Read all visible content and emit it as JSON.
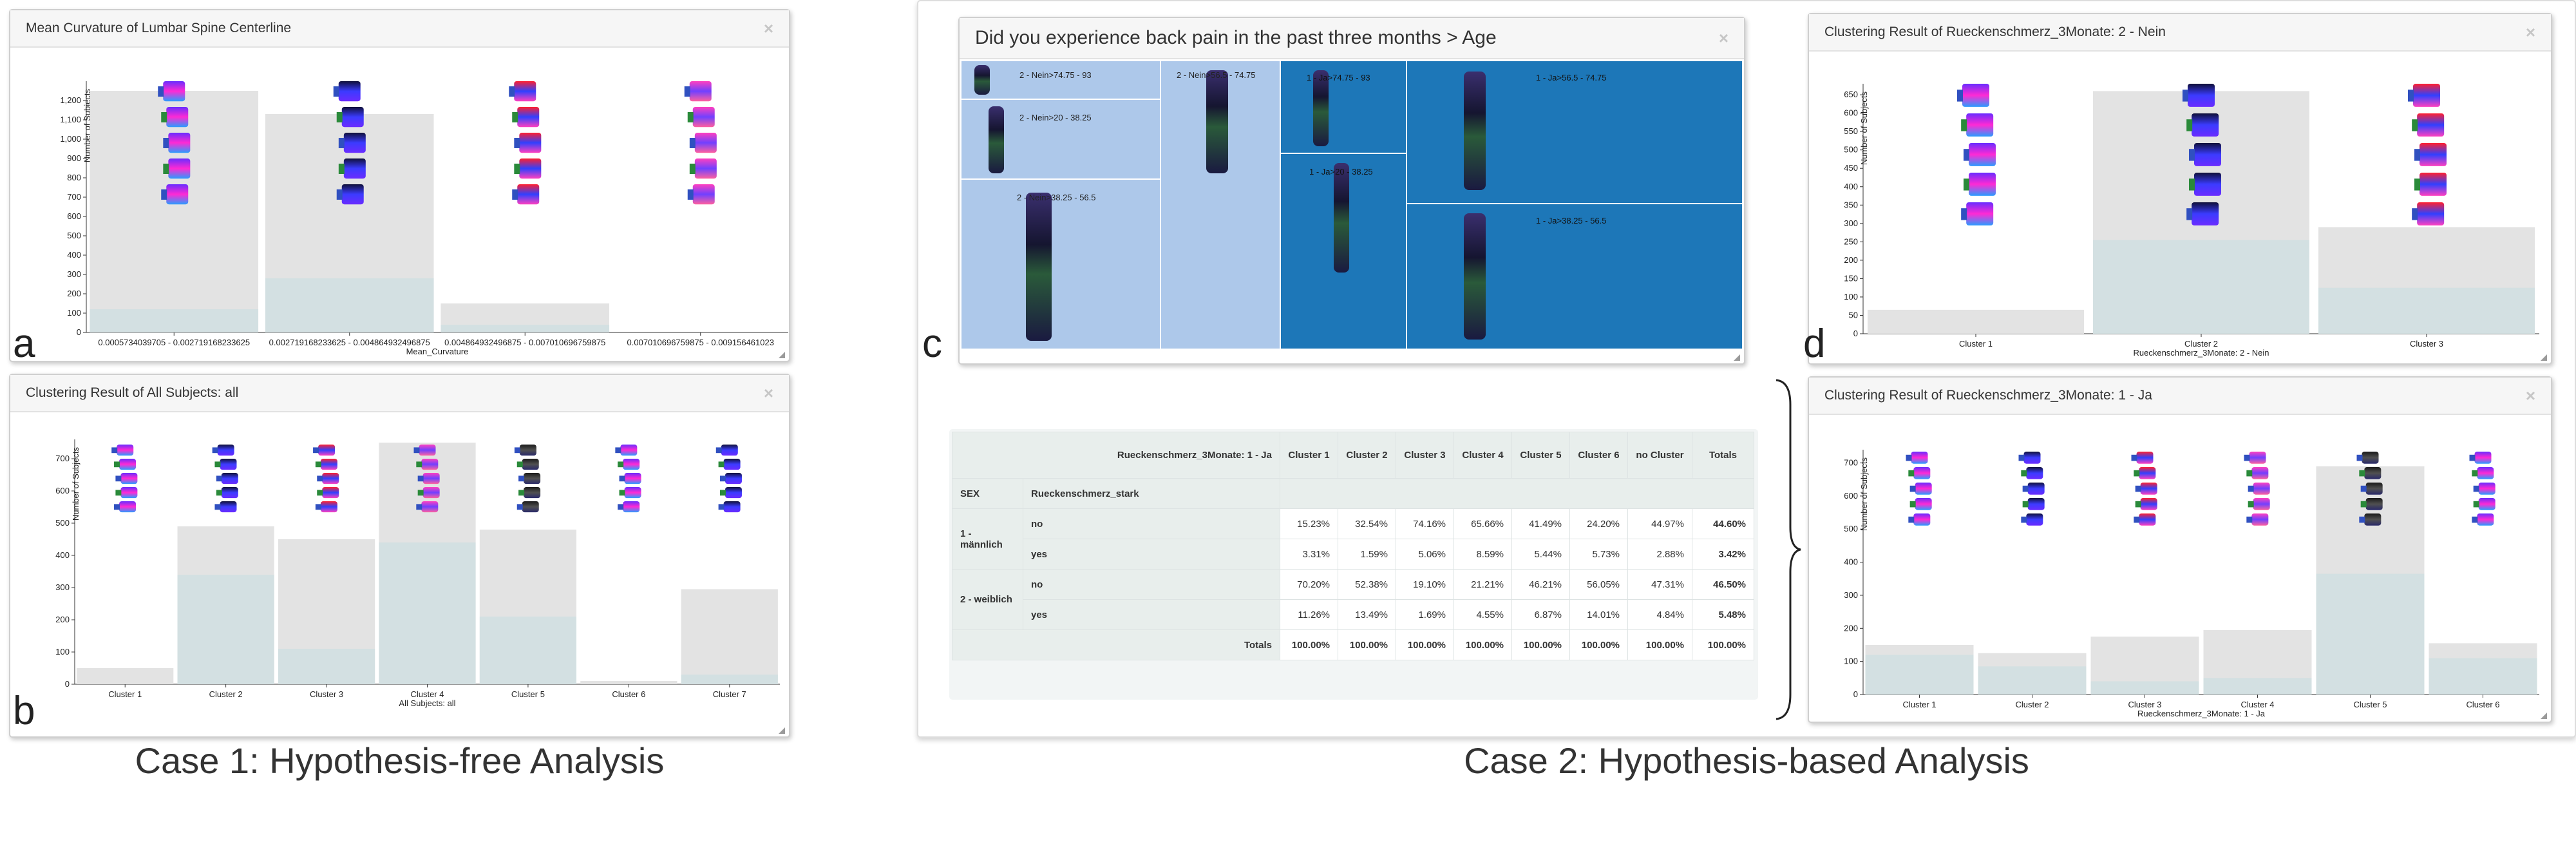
{
  "case1": {
    "caption": "Case 1: Hypothesis-free Analysis",
    "panel_a": {
      "label": "a",
      "title": "Mean Curvature of Lumbar Spine Centerline",
      "close_glyph": "×",
      "ylabel": "Number of Subjects",
      "xlabel": "Mean_Curvature",
      "yticks": [
        "0",
        "100",
        "200",
        "300",
        "400",
        "500",
        "600",
        "700",
        "800",
        "900",
        "1,000",
        "1,100",
        "1,200"
      ],
      "categories": [
        "0.0005734039705 - 0.002719168233625",
        "0.002719168233625 - 0.004864932496875",
        "0.004864932496875 - 0.007010696759875",
        "0.007010696759875 - 0.009156461023"
      ],
      "chart_data": {
        "type": "bar",
        "ylim": [
          0,
          1300
        ],
        "total": [
          1250,
          1130,
          150,
          0
        ],
        "highlight": [
          120,
          280,
          40,
          0
        ]
      }
    },
    "panel_b": {
      "label": "b",
      "title": "Clustering Result of All Subjects: all",
      "close_glyph": "×",
      "ylabel": "Number of Subjects",
      "xlabel": "All Subjects: all",
      "yticks": [
        "0",
        "100",
        "200",
        "300",
        "400",
        "500",
        "600",
        "700"
      ],
      "categories": [
        "Cluster 1",
        "Cluster 2",
        "Cluster 3",
        "Cluster 4",
        "Cluster 5",
        "Cluster 6",
        "Cluster 7"
      ],
      "chart_data": {
        "type": "bar",
        "ylim": [
          0,
          760
        ],
        "total": [
          50,
          490,
          450,
          750,
          480,
          10,
          295
        ],
        "highlight": [
          0,
          340,
          110,
          440,
          210,
          0,
          30
        ]
      }
    }
  },
  "case2": {
    "caption": "Case 2: Hypothesis-based Analysis",
    "panel_c": {
      "label": "c",
      "title": "Did you experience back pain in the past three months > Age",
      "close_glyph": "×",
      "cells": [
        "2 - Nein>74.75 - 93",
        "2 - Nein>20 - 38.25",
        "2 - Nein>38.25 - 56.5",
        "2 - Nein>56.5 - 74.75",
        "1 - Ja>74.75 - 93",
        "1 - Ja>20 - 38.25",
        "1 - Ja>56.5 - 74.75",
        "1 - Ja>38.25 - 56.5"
      ]
    },
    "panel_d": {
      "label": "d",
      "title": "Clustering Result of Rueckenschmerz_3Monate: 2 - Nein",
      "close_glyph": "×",
      "ylabel": "Number of Subjects",
      "xlabel": "Rueckenschmerz_3Monate: 2 - Nein",
      "yticks": [
        "0",
        "50",
        "100",
        "150",
        "200",
        "250",
        "300",
        "350",
        "400",
        "450",
        "500",
        "550",
        "600",
        "650"
      ],
      "categories": [
        "Cluster 1",
        "Cluster 2",
        "Cluster 3"
      ],
      "chart_data": {
        "type": "bar",
        "ylim": [
          0,
          680
        ],
        "total": [
          65,
          660,
          290
        ],
        "highlight": [
          0,
          255,
          125
        ]
      }
    },
    "panel_e": {
      "title": "Clustering Result of Rueckenschmerz_3Monate: 1 - Ja",
      "close_glyph": "×",
      "ylabel": "Number of Subjects",
      "xlabel": "Rueckenschmerz_3Monate: 1 - Ja",
      "yticks": [
        "0",
        "100",
        "200",
        "300",
        "400",
        "500",
        "600",
        "700"
      ],
      "categories": [
        "Cluster 1",
        "Cluster 2",
        "Cluster 3",
        "Cluster 4",
        "Cluster 5",
        "Cluster 6"
      ],
      "chart_data": {
        "type": "bar",
        "ylim": [
          0,
          740
        ],
        "total": [
          150,
          125,
          175,
          195,
          690,
          155
        ],
        "highlight": [
          120,
          85,
          40,
          50,
          365,
          110
        ]
      }
    },
    "table": {
      "corner": "Rueckenschmerz_3Monate: 1 - Ja",
      "columns": [
        "Cluster 1",
        "Cluster 2",
        "Cluster 3",
        "Cluster 4",
        "Cluster 5",
        "Cluster 6",
        "no Cluster",
        "Totals"
      ],
      "row_header": [
        "SEX",
        "Rueckenschmerz_stark"
      ],
      "rows": [
        {
          "group": "1 - männlich",
          "sub": "no",
          "values": [
            "15.23%",
            "32.54%",
            "74.16%",
            "65.66%",
            "41.49%",
            "24.20%",
            "44.97%",
            "44.60%"
          ]
        },
        {
          "group": "",
          "sub": "yes",
          "values": [
            "3.31%",
            "1.59%",
            "5.06%",
            "8.59%",
            "5.44%",
            "5.73%",
            "2.88%",
            "3.42%"
          ]
        },
        {
          "group": "2 - weiblich",
          "sub": "no",
          "values": [
            "70.20%",
            "52.38%",
            "19.10%",
            "21.21%",
            "46.21%",
            "56.05%",
            "47.31%",
            "46.50%"
          ]
        },
        {
          "group": "",
          "sub": "yes",
          "values": [
            "11.26%",
            "13.49%",
            "1.69%",
            "4.55%",
            "6.87%",
            "14.01%",
            "4.84%",
            "5.48%"
          ]
        }
      ],
      "totals_label": "Totals",
      "totals": [
        "100.00%",
        "100.00%",
        "100.00%",
        "100.00%",
        "100.00%",
        "100.00%",
        "100.00%",
        "100.00%"
      ]
    }
  },
  "colors": {
    "bar_total": "#e3e3e3",
    "bar_highlight": "#d3e0e2",
    "treemap_light": "#adc8ea",
    "treemap_dark": "#1d77b8",
    "panel_head": "#f6f6f6"
  },
  "icons": [
    "close-icon",
    "resize-handle-icon",
    "spine-thumbnail-icon",
    "curly-brace-icon"
  ]
}
